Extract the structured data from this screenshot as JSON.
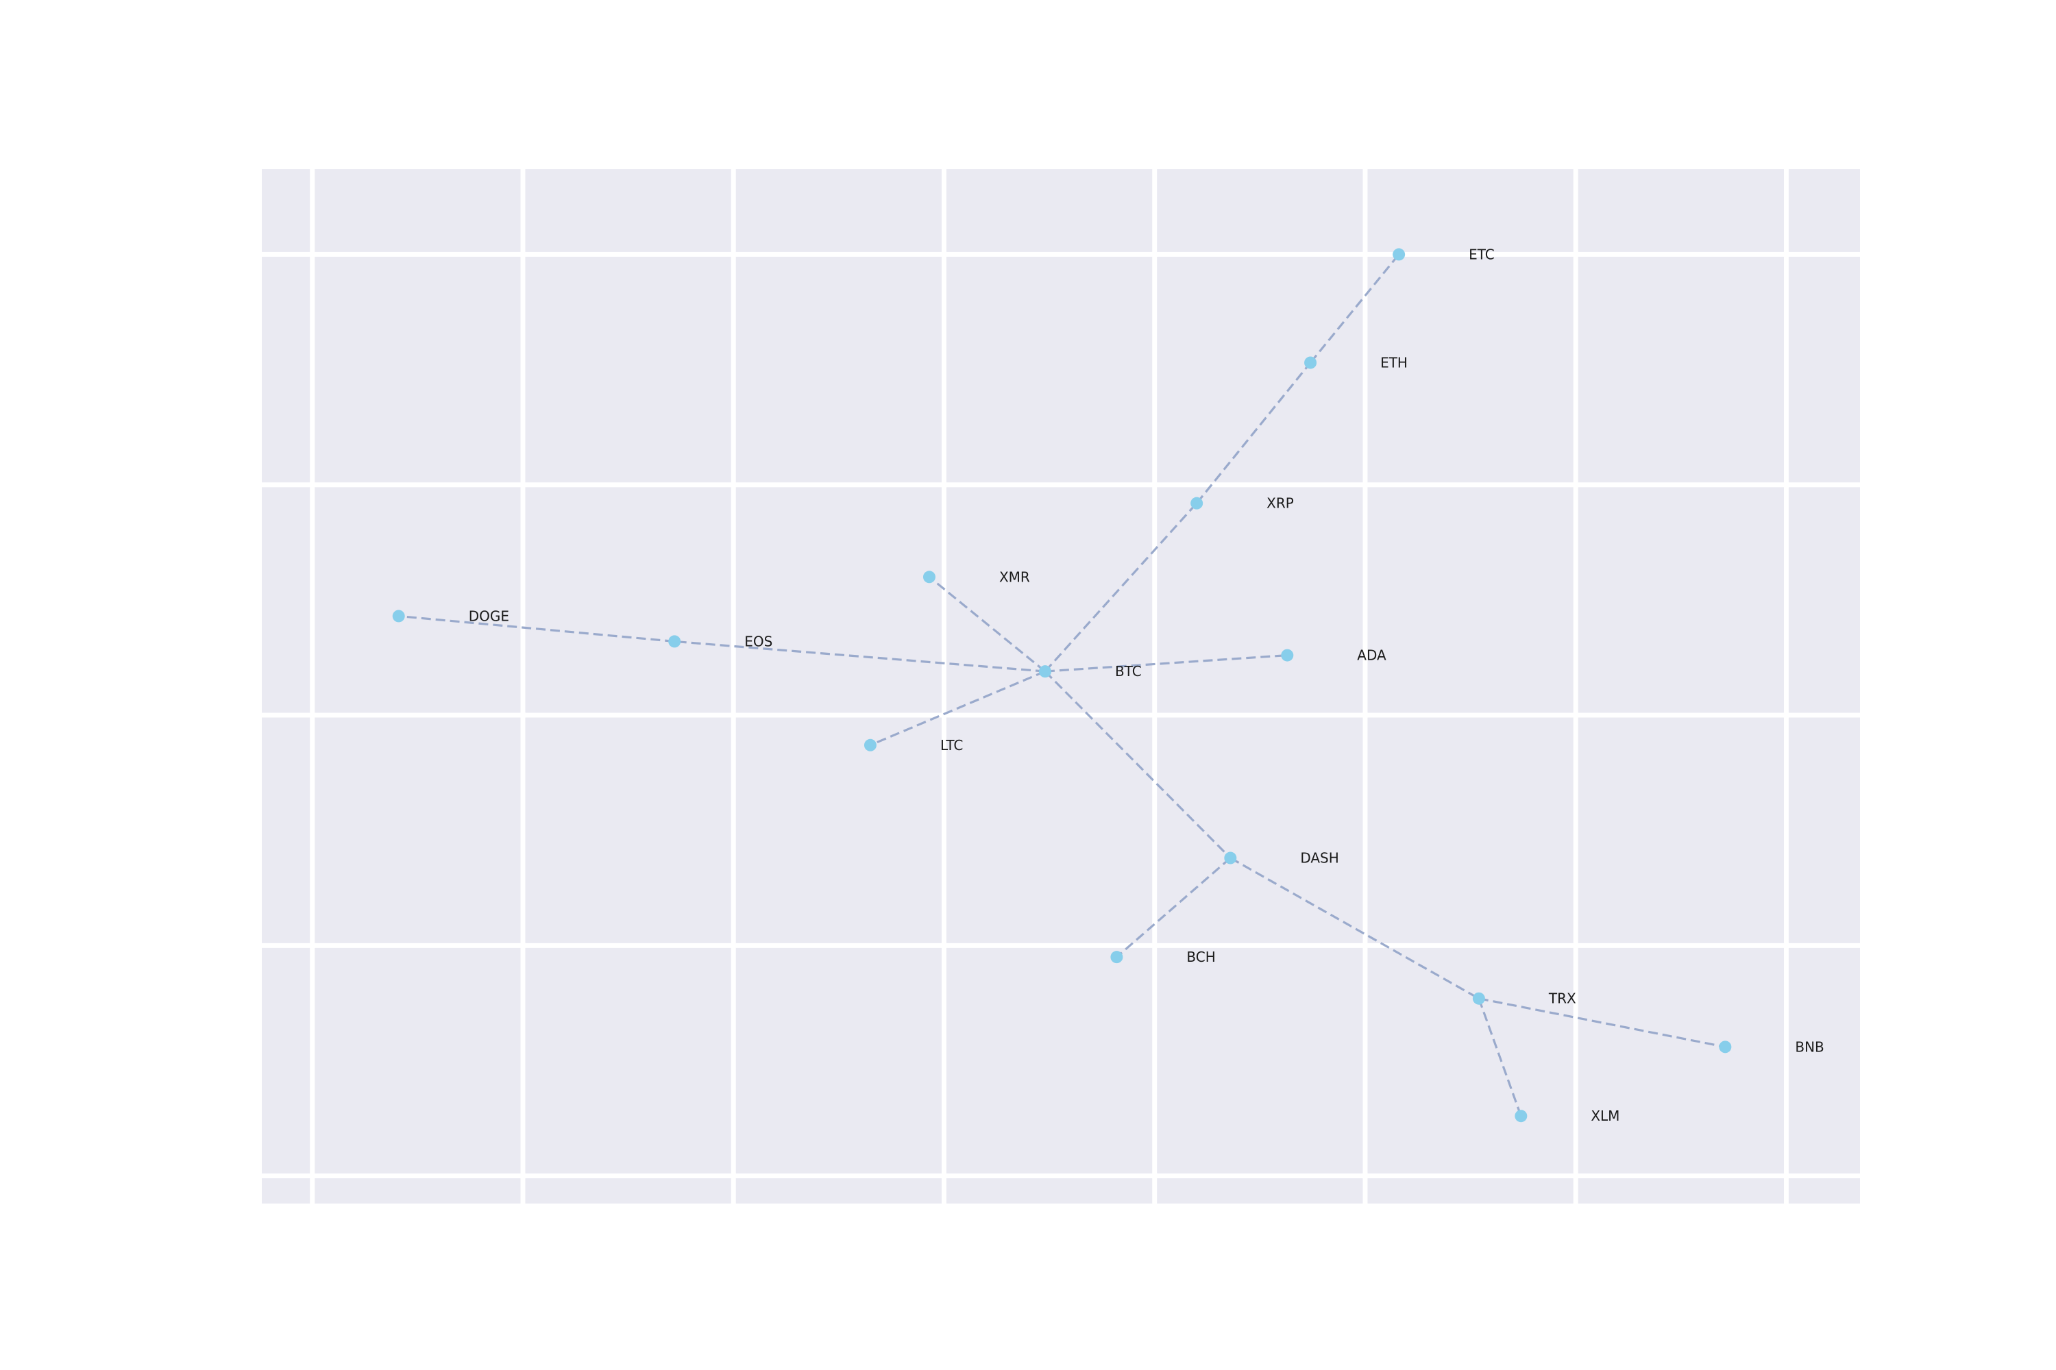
{
  "colors": {
    "plot_background": "#eaeaf2",
    "grid": "#ffffff",
    "node": "#87ceeb",
    "edge": "#9aaacc",
    "label": "#1a1a1a"
  },
  "chart_data": {
    "type": "scatter",
    "title": "",
    "xlabel": "",
    "ylabel": "",
    "grid": true,
    "edge_style": "dashed",
    "axes": {
      "x": {
        "min": -0.24,
        "max": 7.35,
        "gridlines": [
          0,
          1,
          2,
          3,
          4,
          5,
          6,
          7
        ]
      },
      "y": {
        "min": -0.12,
        "max": 4.37,
        "gridlines": [
          0,
          1,
          2,
          3,
          4
        ]
      }
    },
    "nodes": [
      {
        "id": "BTC",
        "label": "BTC",
        "x": 3.48,
        "y": 2.19
      },
      {
        "id": "ETC",
        "label": "ETC",
        "x": 5.16,
        "y": 4.0
      },
      {
        "id": "ETH",
        "label": "ETH",
        "x": 4.74,
        "y": 3.53
      },
      {
        "id": "XRP",
        "label": "XRP",
        "x": 4.2,
        "y": 2.92
      },
      {
        "id": "XMR",
        "label": "XMR",
        "x": 2.93,
        "y": 2.6
      },
      {
        "id": "DOGE",
        "label": "DOGE",
        "x": 0.41,
        "y": 2.43
      },
      {
        "id": "EOS",
        "label": "EOS",
        "x": 1.72,
        "y": 2.32
      },
      {
        "id": "ADA",
        "label": "ADA",
        "x": 4.63,
        "y": 2.26
      },
      {
        "id": "LTC",
        "label": "LTC",
        "x": 2.65,
        "y": 1.87
      },
      {
        "id": "DASH",
        "label": "DASH",
        "x": 4.36,
        "y": 1.38
      },
      {
        "id": "BCH",
        "label": "BCH",
        "x": 3.82,
        "y": 0.95
      },
      {
        "id": "TRX",
        "label": "TRX",
        "x": 5.54,
        "y": 0.77
      },
      {
        "id": "BNB",
        "label": "BNB",
        "x": 6.71,
        "y": 0.56
      },
      {
        "id": "XLM",
        "label": "XLM",
        "x": 5.74,
        "y": 0.26
      }
    ],
    "edges": [
      [
        "BTC",
        "XRP"
      ],
      [
        "XRP",
        "ETH"
      ],
      [
        "ETH",
        "ETC"
      ],
      [
        "BTC",
        "XMR"
      ],
      [
        "BTC",
        "EOS"
      ],
      [
        "EOS",
        "DOGE"
      ],
      [
        "BTC",
        "ADA"
      ],
      [
        "BTC",
        "LTC"
      ],
      [
        "BTC",
        "DASH"
      ],
      [
        "DASH",
        "BCH"
      ],
      [
        "DASH",
        "TRX"
      ],
      [
        "TRX",
        "BNB"
      ],
      [
        "TRX",
        "XLM"
      ]
    ]
  }
}
